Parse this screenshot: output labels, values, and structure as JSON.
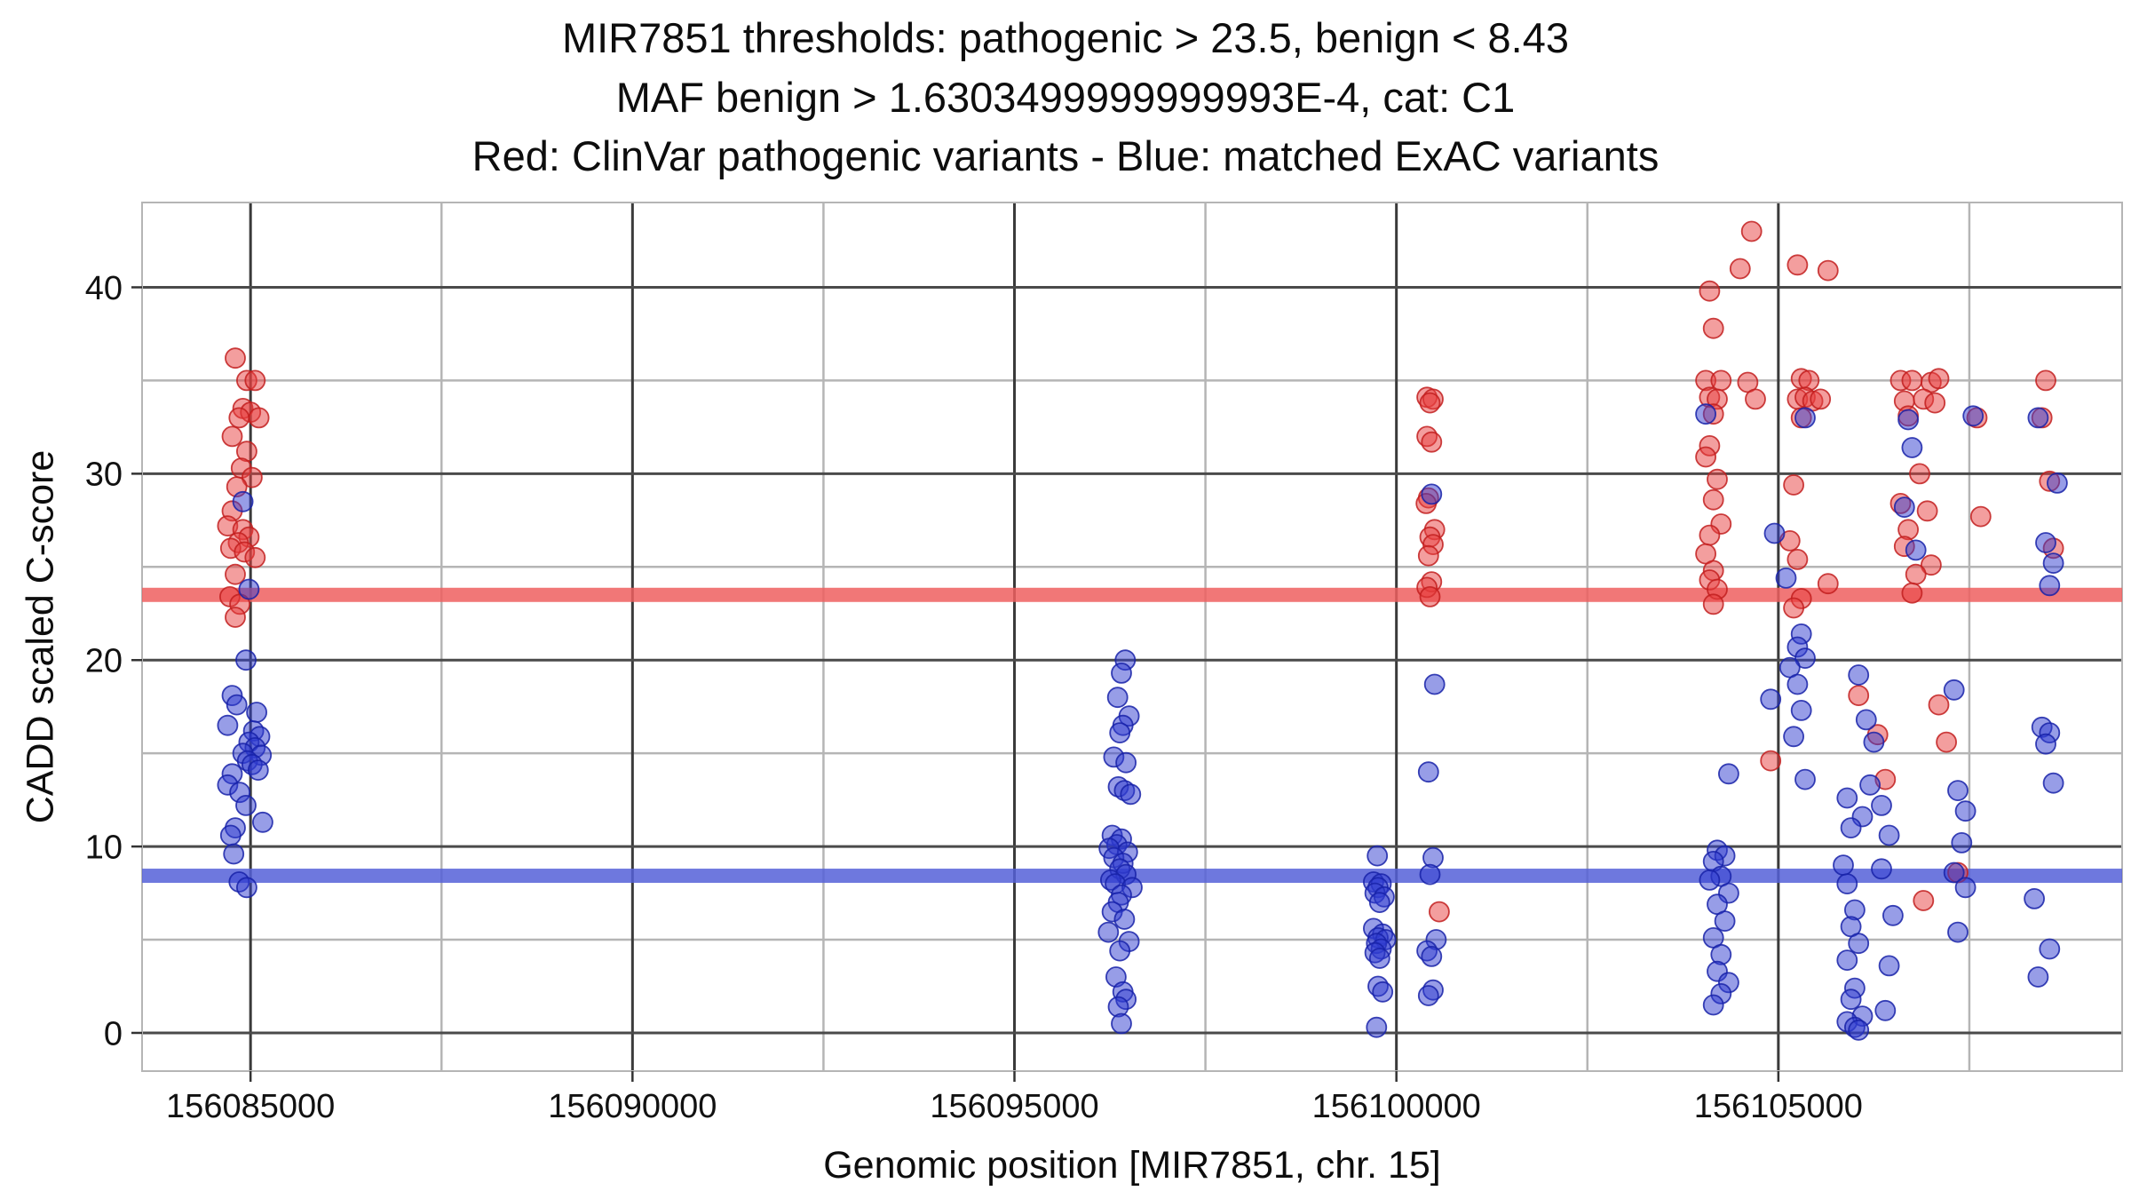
{
  "title_lines": [
    "MIR7851 thresholds: pathogenic > 23.5, benign < 8.43",
    "MAF benign > 1.6303499999999993E-4, cat: C1",
    "Red: ClinVar pathogenic variants - Blue: matched ExAC variants"
  ],
  "axes": {
    "x_label": "Genomic position [MIR7851, chr. 15]",
    "y_label": "CADD scaled C-score"
  },
  "chart_data": {
    "type": "scatter",
    "title": "MIR7851 thresholds: pathogenic > 23.5, benign < 8.43 | MAF benign > 1.6303499999999993E-4, cat: C1",
    "xlabel": "Genomic position [MIR7851, chr. 15]",
    "ylabel": "CADD scaled C-score",
    "xlim": [
      156083580,
      156109500
    ],
    "ylim": [
      -2.05,
      44.55
    ],
    "grid": true,
    "x_ticks": [
      {
        "value": 156085000,
        "label": "156085000"
      },
      {
        "value": 156090000,
        "label": "156090000"
      },
      {
        "value": 156095000,
        "label": "156095000"
      },
      {
        "value": 156100000,
        "label": "156100000"
      },
      {
        "value": 156105000,
        "label": "156105000"
      }
    ],
    "y_ticks": [
      {
        "value": 0,
        "label": "0"
      },
      {
        "value": 10,
        "label": "10"
      },
      {
        "value": 20,
        "label": "20"
      },
      {
        "value": 30,
        "label": "30"
      },
      {
        "value": 40,
        "label": "40"
      }
    ],
    "x_minor": [
      156087500,
      156092500,
      156097500,
      156102500,
      156107500
    ],
    "y_minor": [
      5,
      15,
      25,
      35
    ],
    "thresholds": [
      {
        "name": "pathogenic-threshold",
        "y": 23.5,
        "color": "#ee5f5f"
      },
      {
        "name": "benign-threshold",
        "y": 8.43,
        "color": "#5560d8"
      }
    ],
    "series": [
      {
        "name": "ClinVar pathogenic variants",
        "color": "#e83e3e",
        "stroke": "#c21f1f",
        "points": [
          [
            156084800,
            36.2
          ],
          [
            156084950,
            35.0
          ],
          [
            156085060,
            35.0
          ],
          [
            156084900,
            33.5
          ],
          [
            156085000,
            33.3
          ],
          [
            156084850,
            33.0
          ],
          [
            156085110,
            33.0
          ],
          [
            156084760,
            32.0
          ],
          [
            156084950,
            31.2
          ],
          [
            156084880,
            30.3
          ],
          [
            156085020,
            29.8
          ],
          [
            156084820,
            29.3
          ],
          [
            156084760,
            28.0
          ],
          [
            156084700,
            27.2
          ],
          [
            156084900,
            27.0
          ],
          [
            156084980,
            26.6
          ],
          [
            156084840,
            26.3
          ],
          [
            156084740,
            26.0
          ],
          [
            156084920,
            25.8
          ],
          [
            156085060,
            25.5
          ],
          [
            156084800,
            24.6
          ],
          [
            156084730,
            23.4
          ],
          [
            156084860,
            23.0
          ],
          [
            156084800,
            22.3
          ],
          [
            156100400,
            34.1
          ],
          [
            156100480,
            34.0
          ],
          [
            156100440,
            33.8
          ],
          [
            156100400,
            32.0
          ],
          [
            156100460,
            31.7
          ],
          [
            156100420,
            28.7
          ],
          [
            156100390,
            28.4
          ],
          [
            156100500,
            27.0
          ],
          [
            156100440,
            26.6
          ],
          [
            156100480,
            26.2
          ],
          [
            156100420,
            25.6
          ],
          [
            156100460,
            24.2
          ],
          [
            156100400,
            23.9
          ],
          [
            156100440,
            23.4
          ],
          [
            156100560,
            6.5
          ],
          [
            156104650,
            43.0
          ],
          [
            156105250,
            41.2
          ],
          [
            156104500,
            41.0
          ],
          [
            156105650,
            40.9
          ],
          [
            156104100,
            39.8
          ],
          [
            156104150,
            37.8
          ],
          [
            156104050,
            35.0
          ],
          [
            156104250,
            35.0
          ],
          [
            156104600,
            34.9
          ],
          [
            156105300,
            35.1
          ],
          [
            156105400,
            35.0
          ],
          [
            156106600,
            35.0
          ],
          [
            156106750,
            35.0
          ],
          [
            156107000,
            34.9
          ],
          [
            156107100,
            35.1
          ],
          [
            156108500,
            35.0
          ],
          [
            156104100,
            34.1
          ],
          [
            156104200,
            34.0
          ],
          [
            156104700,
            34.0
          ],
          [
            156105250,
            34.0
          ],
          [
            156105350,
            34.1
          ],
          [
            156105450,
            33.9
          ],
          [
            156105550,
            34.0
          ],
          [
            156106650,
            33.9
          ],
          [
            156106900,
            34.0
          ],
          [
            156107050,
            33.8
          ],
          [
            156104150,
            33.2
          ],
          [
            156105300,
            33.0
          ],
          [
            156106700,
            33.1
          ],
          [
            156107600,
            33.0
          ],
          [
            156108450,
            33.0
          ],
          [
            156104100,
            31.5
          ],
          [
            156104050,
            30.9
          ],
          [
            156106850,
            30.0
          ],
          [
            156104200,
            29.7
          ],
          [
            156105200,
            29.4
          ],
          [
            156108550,
            29.6
          ],
          [
            156104150,
            28.6
          ],
          [
            156106600,
            28.4
          ],
          [
            156106950,
            28.0
          ],
          [
            156107650,
            27.7
          ],
          [
            156104250,
            27.3
          ],
          [
            156106700,
            27.0
          ],
          [
            156104100,
            26.7
          ],
          [
            156105150,
            26.4
          ],
          [
            156106650,
            26.1
          ],
          [
            156108600,
            26.0
          ],
          [
            156104050,
            25.7
          ],
          [
            156105250,
            25.4
          ],
          [
            156107000,
            25.1
          ],
          [
            156104150,
            24.8
          ],
          [
            156106800,
            24.6
          ],
          [
            156104100,
            24.3
          ],
          [
            156105650,
            24.1
          ],
          [
            156104200,
            23.8
          ],
          [
            156106750,
            23.6
          ],
          [
            156105300,
            23.3
          ],
          [
            156104150,
            23.0
          ],
          [
            156105200,
            22.8
          ],
          [
            156106050,
            18.1
          ],
          [
            156107100,
            17.6
          ],
          [
            156106300,
            16.0
          ],
          [
            156107200,
            15.6
          ],
          [
            156104900,
            14.6
          ],
          [
            156106400,
            13.6
          ],
          [
            156107350,
            8.6
          ],
          [
            156106900,
            7.1
          ]
        ]
      },
      {
        "name": "matched ExAC variants",
        "color": "#2f3bd0",
        "stroke": "#1822a8",
        "points": [
          [
            156084900,
            28.5
          ],
          [
            156084980,
            23.8
          ],
          [
            156084940,
            20.0
          ],
          [
            156084760,
            18.1
          ],
          [
            156084820,
            17.6
          ],
          [
            156085080,
            17.2
          ],
          [
            156084700,
            16.5
          ],
          [
            156085040,
            16.2
          ],
          [
            156085120,
            15.9
          ],
          [
            156084980,
            15.6
          ],
          [
            156085060,
            15.3
          ],
          [
            156084900,
            15.0
          ],
          [
            156085140,
            14.9
          ],
          [
            156084960,
            14.6
          ],
          [
            156085020,
            14.4
          ],
          [
            156085100,
            14.1
          ],
          [
            156084760,
            13.9
          ],
          [
            156084700,
            13.3
          ],
          [
            156084860,
            12.9
          ],
          [
            156084940,
            12.2
          ],
          [
            156085160,
            11.3
          ],
          [
            156084800,
            11.0
          ],
          [
            156084740,
            10.6
          ],
          [
            156084780,
            9.6
          ],
          [
            156084850,
            8.1
          ],
          [
            156084950,
            7.8
          ],
          [
            156096450,
            20.0
          ],
          [
            156096400,
            19.3
          ],
          [
            156096350,
            18.0
          ],
          [
            156096500,
            17.0
          ],
          [
            156096420,
            16.5
          ],
          [
            156096380,
            16.1
          ],
          [
            156096300,
            14.8
          ],
          [
            156096460,
            14.5
          ],
          [
            156096360,
            13.2
          ],
          [
            156096440,
            13.0
          ],
          [
            156096520,
            12.8
          ],
          [
            156096280,
            10.6
          ],
          [
            156096400,
            10.4
          ],
          [
            156096340,
            10.1
          ],
          [
            156096240,
            9.9
          ],
          [
            156096480,
            9.7
          ],
          [
            156096300,
            9.4
          ],
          [
            156096420,
            9.1
          ],
          [
            156096380,
            8.8
          ],
          [
            156096460,
            8.5
          ],
          [
            156096260,
            8.2
          ],
          [
            156096320,
            8.0
          ],
          [
            156096540,
            7.8
          ],
          [
            156096400,
            7.4
          ],
          [
            156096360,
            7.0
          ],
          [
            156096280,
            6.5
          ],
          [
            156096440,
            6.1
          ],
          [
            156096230,
            5.4
          ],
          [
            156096500,
            4.9
          ],
          [
            156096380,
            4.4
          ],
          [
            156096330,
            3.0
          ],
          [
            156096420,
            2.2
          ],
          [
            156096460,
            1.8
          ],
          [
            156096360,
            1.4
          ],
          [
            156096400,
            0.5
          ],
          [
            156099750,
            9.5
          ],
          [
            156099700,
            8.1
          ],
          [
            156099800,
            8.0
          ],
          [
            156099760,
            7.8
          ],
          [
            156099720,
            7.5
          ],
          [
            156099840,
            7.3
          ],
          [
            156099780,
            7.0
          ],
          [
            156099700,
            5.6
          ],
          [
            156099820,
            5.3
          ],
          [
            156099760,
            5.1
          ],
          [
            156099860,
            5.0
          ],
          [
            156099740,
            4.8
          ],
          [
            156099800,
            4.5
          ],
          [
            156099720,
            4.3
          ],
          [
            156099780,
            4.0
          ],
          [
            156099760,
            2.5
          ],
          [
            156099820,
            2.2
          ],
          [
            156099740,
            0.3
          ],
          [
            156100460,
            28.9
          ],
          [
            156100500,
            18.7
          ],
          [
            156100420,
            14.0
          ],
          [
            156100480,
            9.4
          ],
          [
            156100440,
            8.5
          ],
          [
            156100520,
            5.0
          ],
          [
            156100400,
            4.4
          ],
          [
            156100460,
            4.1
          ],
          [
            156100480,
            2.3
          ],
          [
            156100420,
            2.0
          ],
          [
            156104050,
            33.2
          ],
          [
            156105350,
            33.0
          ],
          [
            156106700,
            32.9
          ],
          [
            156107550,
            33.1
          ],
          [
            156108400,
            33.0
          ],
          [
            156108650,
            29.5
          ],
          [
            156106750,
            31.4
          ],
          [
            156106650,
            28.2
          ],
          [
            156104950,
            26.8
          ],
          [
            156108500,
            26.3
          ],
          [
            156106800,
            25.9
          ],
          [
            156108600,
            25.2
          ],
          [
            156105100,
            24.4
          ],
          [
            156108550,
            24.0
          ],
          [
            156105300,
            21.4
          ],
          [
            156105250,
            20.7
          ],
          [
            156105350,
            20.1
          ],
          [
            156105150,
            19.6
          ],
          [
            156106050,
            19.2
          ],
          [
            156105250,
            18.7
          ],
          [
            156107300,
            18.4
          ],
          [
            156104900,
            17.9
          ],
          [
            156105300,
            17.3
          ],
          [
            156106150,
            16.8
          ],
          [
            156108450,
            16.4
          ],
          [
            156108550,
            16.1
          ],
          [
            156105200,
            15.9
          ],
          [
            156106250,
            15.6
          ],
          [
            156108500,
            15.5
          ],
          [
            156104350,
            13.9
          ],
          [
            156105350,
            13.6
          ],
          [
            156106200,
            13.3
          ],
          [
            156107350,
            13.0
          ],
          [
            156108600,
            13.4
          ],
          [
            156105900,
            12.6
          ],
          [
            156106350,
            12.2
          ],
          [
            156107450,
            11.9
          ],
          [
            156106100,
            11.6
          ],
          [
            156105950,
            11.0
          ],
          [
            156106450,
            10.6
          ],
          [
            156107400,
            10.2
          ],
          [
            156104200,
            9.8
          ],
          [
            156104300,
            9.5
          ],
          [
            156104150,
            9.2
          ],
          [
            156105850,
            9.0
          ],
          [
            156106350,
            8.8
          ],
          [
            156107300,
            8.6
          ],
          [
            156104250,
            8.4
          ],
          [
            156104100,
            8.2
          ],
          [
            156105900,
            8.0
          ],
          [
            156107450,
            7.8
          ],
          [
            156104350,
            7.5
          ],
          [
            156108350,
            7.2
          ],
          [
            156104200,
            6.9
          ],
          [
            156106000,
            6.6
          ],
          [
            156106500,
            6.3
          ],
          [
            156104300,
            6.0
          ],
          [
            156105950,
            5.7
          ],
          [
            156107350,
            5.4
          ],
          [
            156104150,
            5.1
          ],
          [
            156106050,
            4.8
          ],
          [
            156108550,
            4.5
          ],
          [
            156104250,
            4.2
          ],
          [
            156105900,
            3.9
          ],
          [
            156106450,
            3.6
          ],
          [
            156104200,
            3.3
          ],
          [
            156108400,
            3.0
          ],
          [
            156104350,
            2.7
          ],
          [
            156106000,
            2.4
          ],
          [
            156104250,
            2.1
          ],
          [
            156105950,
            1.8
          ],
          [
            156104150,
            1.5
          ],
          [
            156106400,
            1.2
          ],
          [
            156106100,
            0.9
          ],
          [
            156105900,
            0.6
          ],
          [
            156106000,
            0.3
          ],
          [
            156106050,
            0.15
          ]
        ]
      }
    ]
  }
}
